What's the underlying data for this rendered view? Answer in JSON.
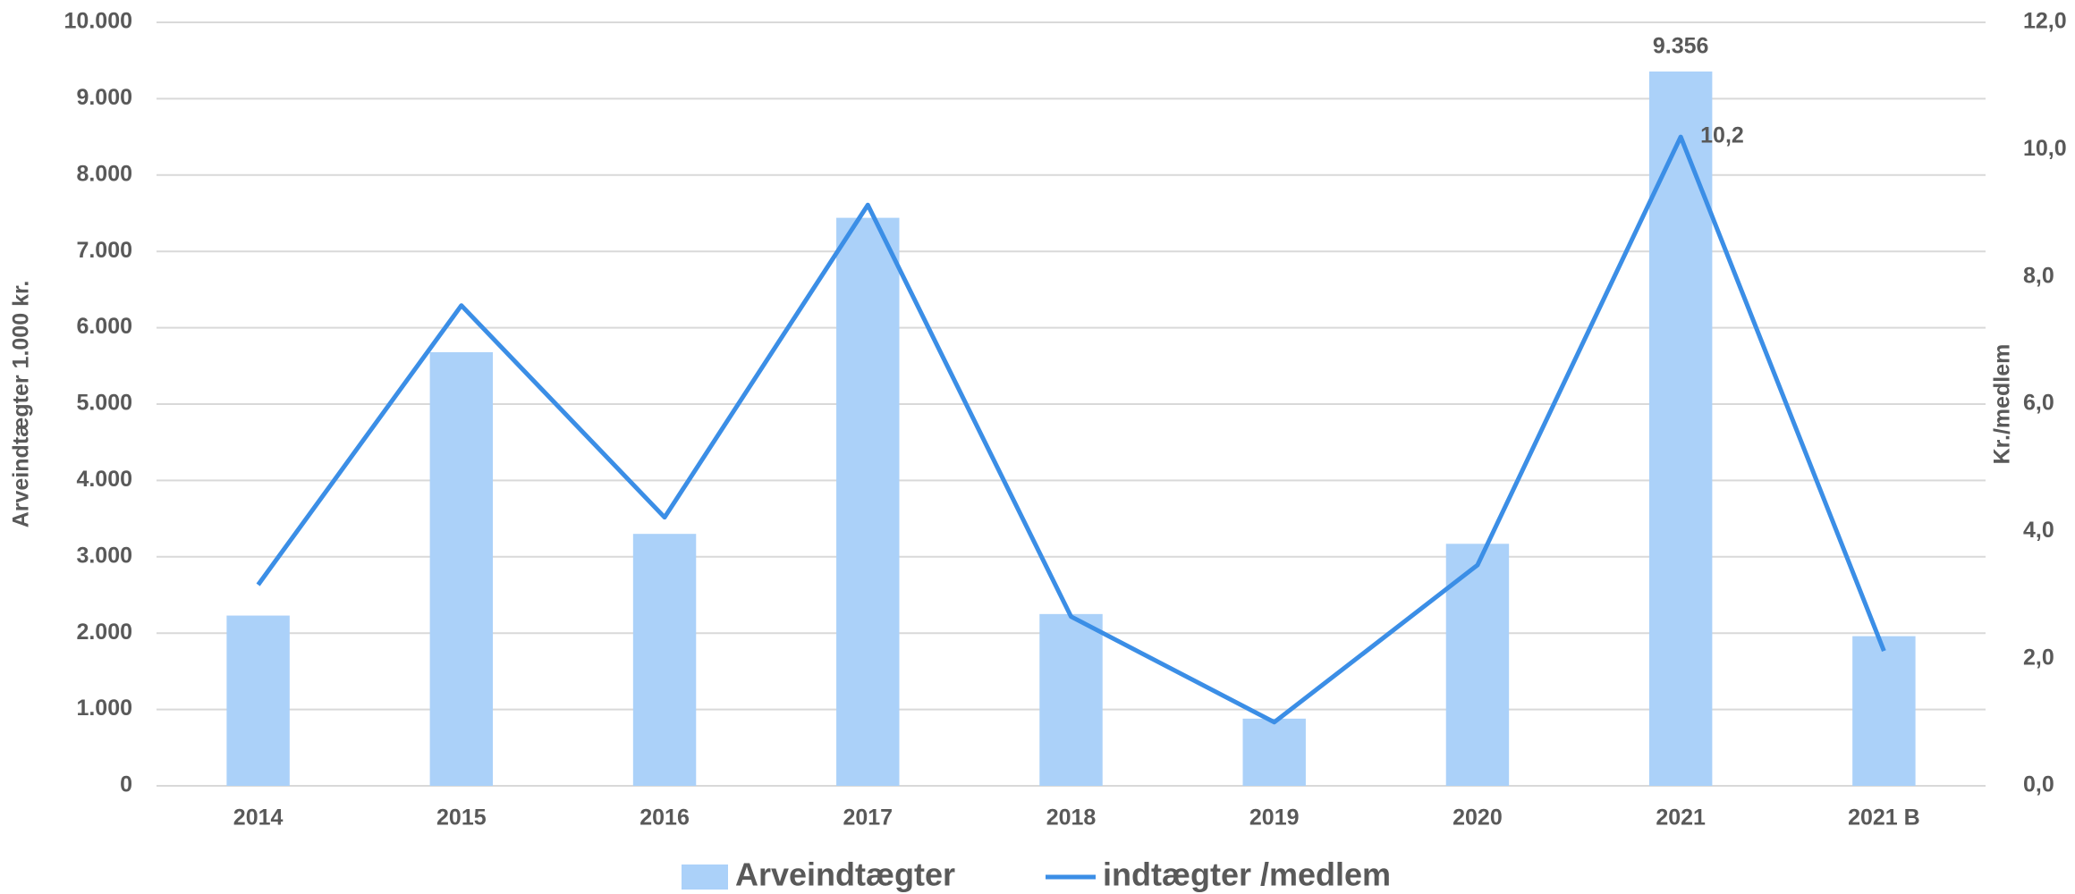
{
  "chart_data": {
    "type": "combo",
    "categories": [
      "2014",
      "2015",
      "2016",
      "2017",
      "2018",
      "2019",
      "2020",
      "2021",
      "2021 B"
    ],
    "ylabel": "Arveindtægter 1.000 kr.",
    "y2label": "Kr./medlem",
    "ylim": [
      0,
      10000
    ],
    "yticks": [
      {
        "value": 0,
        "label": "0"
      },
      {
        "value": 1000,
        "label": "1.000"
      },
      {
        "value": 2000,
        "label": "2.000"
      },
      {
        "value": 3000,
        "label": "3.000"
      },
      {
        "value": 4000,
        "label": "4.000"
      },
      {
        "value": 5000,
        "label": "5.000"
      },
      {
        "value": 6000,
        "label": "6.000"
      },
      {
        "value": 7000,
        "label": "7.000"
      },
      {
        "value": 8000,
        "label": "8.000"
      },
      {
        "value": 9000,
        "label": "9.000"
      },
      {
        "value": 10000,
        "label": "10.000"
      }
    ],
    "y2lim": [
      0,
      12
    ],
    "y2ticks": [
      {
        "value": 0,
        "label": "0,0"
      },
      {
        "value": 2,
        "label": "2,0"
      },
      {
        "value": 4,
        "label": "4,0"
      },
      {
        "value": 6,
        "label": "6,0"
      },
      {
        "value": 8,
        "label": "8,0"
      },
      {
        "value": 10,
        "label": "10,0"
      },
      {
        "value": 12,
        "label": "12,0"
      }
    ],
    "grid": true,
    "legend": "bottom",
    "series": [
      {
        "name": "Arveindtægter",
        "type": "bar",
        "color": "#abd1f9",
        "axis": "y",
        "values": [
          2230,
          5680,
          3300,
          7440,
          2250,
          880,
          3170,
          9356,
          1960
        ],
        "value_labels": [
          null,
          null,
          null,
          null,
          null,
          null,
          null,
          "9.356",
          null
        ]
      },
      {
        "name": "indtægter /medlem",
        "type": "line",
        "color": "#3b8ee6",
        "axis": "y2",
        "values": [
          3.16,
          7.55,
          4.22,
          9.13,
          2.66,
          1.0,
          3.47,
          10.2,
          2.12
        ],
        "value_labels": [
          null,
          null,
          null,
          null,
          null,
          null,
          null,
          "10,2",
          null
        ]
      }
    ]
  }
}
